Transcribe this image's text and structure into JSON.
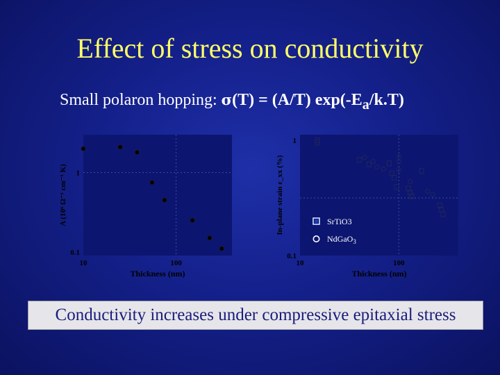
{
  "slide": {
    "title": "Effect of stress on conductivity",
    "formula": {
      "prefix": "Small polaron hopping: ",
      "sigma": "σ",
      "expr_main": "(T) = (A/T) exp(-E",
      "expr_sub": "a",
      "expr_end": "/k.T)"
    },
    "conclusion": "Conductivity increases under compressive epitaxial stress"
  },
  "colors": {
    "title": "#ffff66",
    "chart_background": "#0c1670",
    "markers": "#000000",
    "axis_text": "#000000"
  },
  "chart_data": [
    {
      "type": "scatter",
      "xlabel": "Thickness (nm)",
      "ylabel": "A (10⁶ Ω⁻¹ cm⁻¹ K)",
      "xscale": "log",
      "yscale": "log",
      "xlim": [
        10,
        400
      ],
      "ylim": [
        0.09,
        3
      ],
      "x_ticks": [
        "10",
        "100"
      ],
      "y_ticks": [
        "1",
        "0.1"
      ],
      "series": [
        {
          "marker": "filled-circle",
          "x": [
            10,
            25,
            38,
            55,
            75,
            150,
            230,
            310
          ],
          "y": [
            2.0,
            2.1,
            1.8,
            0.75,
            0.45,
            0.25,
            0.15,
            0.11
          ]
        }
      ]
    },
    {
      "type": "scatter",
      "xlabel": "Thickness (nm)",
      "ylabel": "In-plane strain ε_xx (%)",
      "xscale": "log",
      "yscale": "log",
      "xlim": [
        10,
        400
      ],
      "ylim": [
        0.1,
        1
      ],
      "x_ticks": [
        "10",
        "100"
      ],
      "y_ticks": [
        "1",
        "0.1"
      ],
      "legend_position": "lower-middle",
      "series": [
        {
          "name": "SrTiO3",
          "marker": "open-square",
          "x": [
            15,
            15,
            40,
            50,
            80,
            85,
            90,
            95,
            125,
            130,
            135,
            170,
            260,
            270,
            280
          ],
          "y": [
            0.9,
            0.86,
            0.62,
            0.57,
            0.58,
            0.48,
            0.44,
            0.37,
            0.36,
            0.33,
            0.31,
            0.5,
            0.26,
            0.24,
            0.22
          ]
        },
        {
          "marker": "open-circle",
          "x": [
            45,
            55,
            60,
            70,
            100,
            100,
            100,
            130,
            195,
            220
          ],
          "y": [
            0.65,
            0.6,
            0.54,
            0.52,
            0.66,
            0.6,
            0.51,
            0.41,
            0.34,
            0.32
          ]
        }
      ]
    }
  ]
}
